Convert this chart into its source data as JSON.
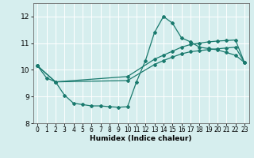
{
  "xlabel": "Humidex (Indice chaleur)",
  "xlim": [
    -0.5,
    23.5
  ],
  "ylim": [
    8.0,
    12.5
  ],
  "yticks": [
    8,
    9,
    10,
    11,
    12
  ],
  "xticks": [
    0,
    1,
    2,
    3,
    4,
    5,
    6,
    7,
    8,
    9,
    10,
    11,
    12,
    13,
    14,
    15,
    16,
    17,
    18,
    19,
    20,
    21,
    22,
    23
  ],
  "bg_color": "#d6eeee",
  "grid_color": "#b8d8d8",
  "line_color": "#1a7a6e",
  "lines": [
    {
      "x": [
        0,
        1,
        2,
        3,
        4,
        5,
        6,
        7,
        8,
        9,
        10,
        11,
        12,
        13,
        14,
        15,
        16,
        17,
        18,
        19,
        20,
        21,
        22,
        23
      ],
      "y": [
        10.15,
        9.7,
        9.55,
        9.05,
        8.75,
        8.7,
        8.65,
        8.65,
        8.62,
        8.6,
        8.62,
        9.55,
        10.35,
        11.4,
        12.0,
        11.75,
        11.2,
        11.05,
        10.85,
        10.8,
        10.75,
        10.65,
        10.55,
        10.28
      ]
    },
    {
      "x": [
        0,
        2,
        10,
        13,
        14,
        15,
        16,
        17,
        18,
        19,
        20,
        21,
        22,
        23
      ],
      "y": [
        10.15,
        9.55,
        9.75,
        10.4,
        10.55,
        10.7,
        10.85,
        10.95,
        11.0,
        11.05,
        11.08,
        11.1,
        11.12,
        10.28
      ]
    },
    {
      "x": [
        0,
        2,
        10,
        13,
        14,
        15,
        16,
        17,
        18,
        19,
        20,
        21,
        22,
        23
      ],
      "y": [
        10.15,
        9.55,
        9.6,
        10.2,
        10.35,
        10.48,
        10.6,
        10.68,
        10.72,
        10.76,
        10.79,
        10.82,
        10.85,
        10.28
      ]
    }
  ]
}
